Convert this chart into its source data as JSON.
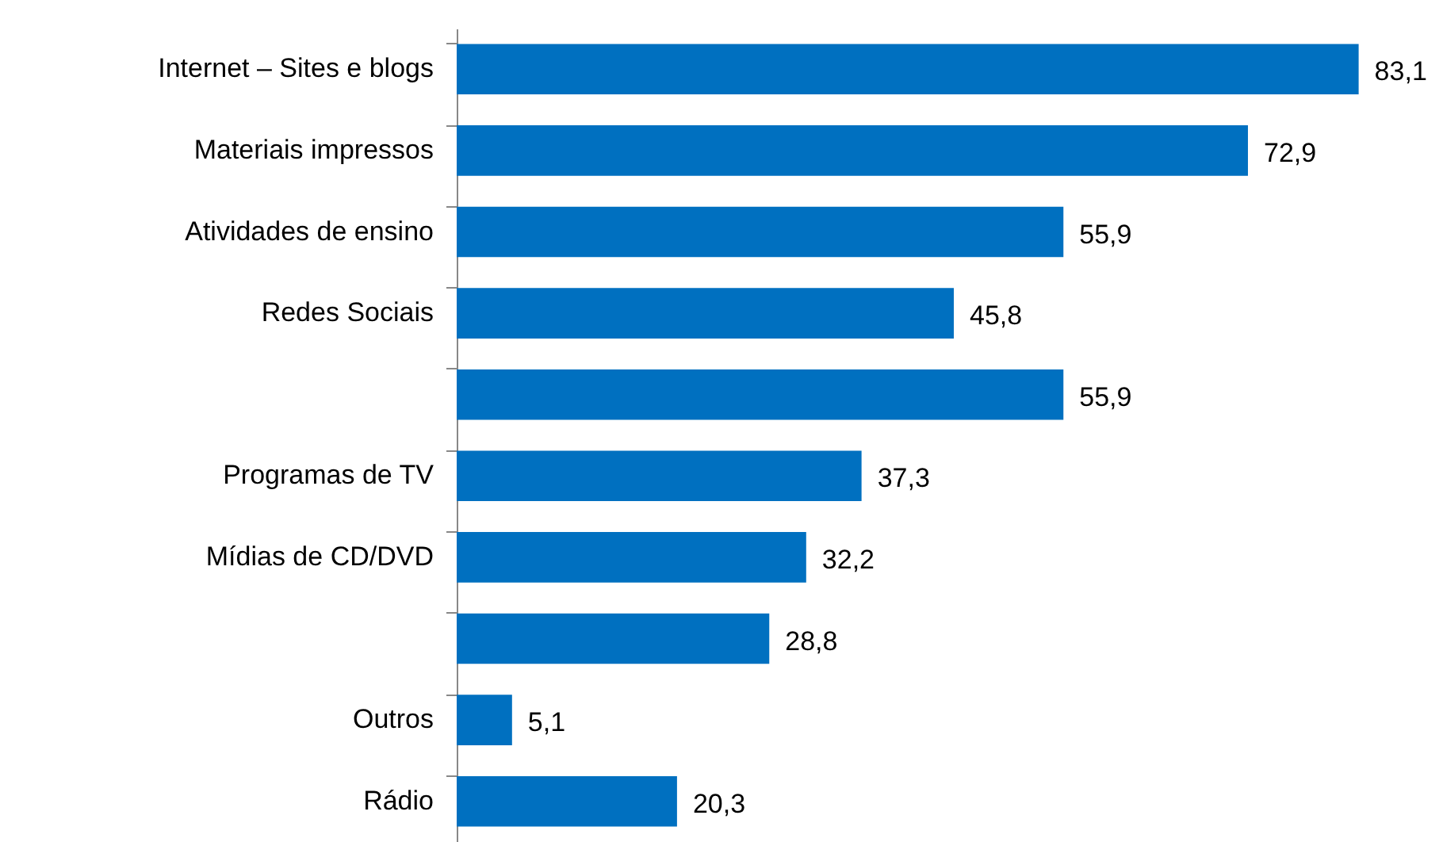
{
  "chart_data": {
    "type": "bar",
    "orientation": "horizontal",
    "categories": [
      "Internet – Sites e blogs",
      "Materiais impressos",
      "Atividades de ensino",
      "Redes Sociais",
      null,
      "Programas de TV",
      "Mídias de CD/DVD",
      null,
      "Outros",
      "Rádio"
    ],
    "values": [
      83.1,
      72.9,
      55.9,
      45.8,
      55.9,
      37.3,
      32.2,
      28.8,
      5.1,
      20.3
    ],
    "value_labels": [
      "83,1",
      "72,9",
      "55,9",
      "45,8",
      "55,9",
      "37,3",
      "32,2",
      "28,8",
      "5,1",
      "20,3"
    ],
    "color": "#0070c0"
  }
}
